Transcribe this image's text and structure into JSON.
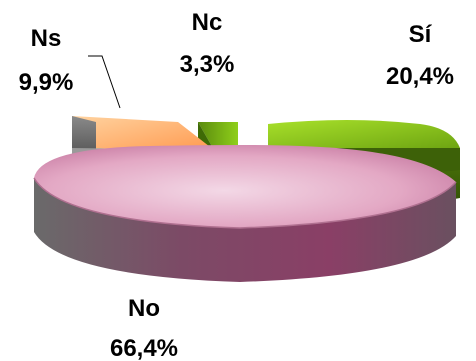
{
  "chart_data": {
    "type": "pie",
    "title": "",
    "style": "3d-exploded",
    "slices": [
      {
        "label": "Sí",
        "value": 20.4,
        "value_label": "20,4%",
        "color": "#8fcf1a"
      },
      {
        "label": "No",
        "value": 66.4,
        "value_label": "66,4%",
        "color": "#e3a8c4"
      },
      {
        "label": "Ns",
        "value": 9.9,
        "value_label": "9,9%",
        "color": "#ffb070"
      },
      {
        "label": "Nc",
        "value": 3.3,
        "value_label": "3,3%",
        "color": "#8fcf1a"
      }
    ]
  }
}
